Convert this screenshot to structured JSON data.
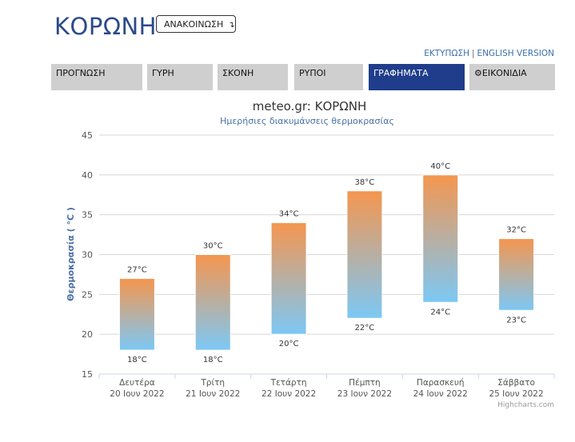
{
  "header": {
    "city": "ΚΟΡΩΝΗ",
    "announcement_label": "ΑΝΑΚΟΙΝΩΣΗ",
    "announcement_icon": "arrow-down-icon",
    "print_link": "ΕΚΤΥΠΩΣΗ",
    "link_separator": "|",
    "english_link": "ENGLISH VERSION"
  },
  "tabs": [
    {
      "label": "ΠΡΟΓΝΩΣΗ",
      "active": false
    },
    {
      "label": "ΓΥΡΗ",
      "active": false
    },
    {
      "label": "ΣΚΟΝΗ",
      "active": false
    },
    {
      "label": "ΡΥΠΟΙ",
      "active": false
    },
    {
      "label": "ΓΡΑΦΗΜΑΤΑ",
      "active": true
    },
    {
      "label": "ΕΙΚΟΝΙΔΙΑ",
      "active": false,
      "icon": "gear-icon"
    }
  ],
  "chart_data": {
    "type": "bar",
    "subtype": "columnrange",
    "title": "meteo.gr: ΚΟΡΩΝΗ",
    "subtitle": "Ημερήσιες διακυμάνσεις θερμοκρασίας",
    "ylabel": "Θερμοκρασία ( °C )",
    "ylim": [
      15,
      45
    ],
    "yticks": [
      "15",
      "20",
      "25",
      "30",
      "35",
      "40",
      "45"
    ],
    "grid": true,
    "unit": "°C",
    "categories": [
      {
        "day": "Δευτέρα",
        "date": "20 Ιουν 2022"
      },
      {
        "day": "Τρίτη",
        "date": "21 Ιουν 2022"
      },
      {
        "day": "Τετάρτη",
        "date": "22 Ιουν 2022"
      },
      {
        "day": "Πέμπτη",
        "date": "23 Ιουν 2022"
      },
      {
        "day": "Παρασκευή",
        "date": "24 Ιουν 2022"
      },
      {
        "day": "Σάββατο",
        "date": "25 Ιουν 2022"
      }
    ],
    "low": [
      18,
      18,
      20,
      22,
      24,
      23
    ],
    "high": [
      27,
      30,
      34,
      38,
      40,
      32
    ],
    "low_labels": [
      "18°C",
      "18°C",
      "20°C",
      "22°C",
      "24°C",
      "23°C"
    ],
    "high_labels": [
      "27°C",
      "30°C",
      "34°C",
      "38°C",
      "40°C",
      "32°C"
    ],
    "colors": {
      "top": "#f5964f",
      "bottom": "#7cc8f5",
      "title": "#333333",
      "subtitle": "#4a6fa5",
      "axis_title": "#4a6fa5"
    },
    "credits": "Highcharts.com"
  }
}
